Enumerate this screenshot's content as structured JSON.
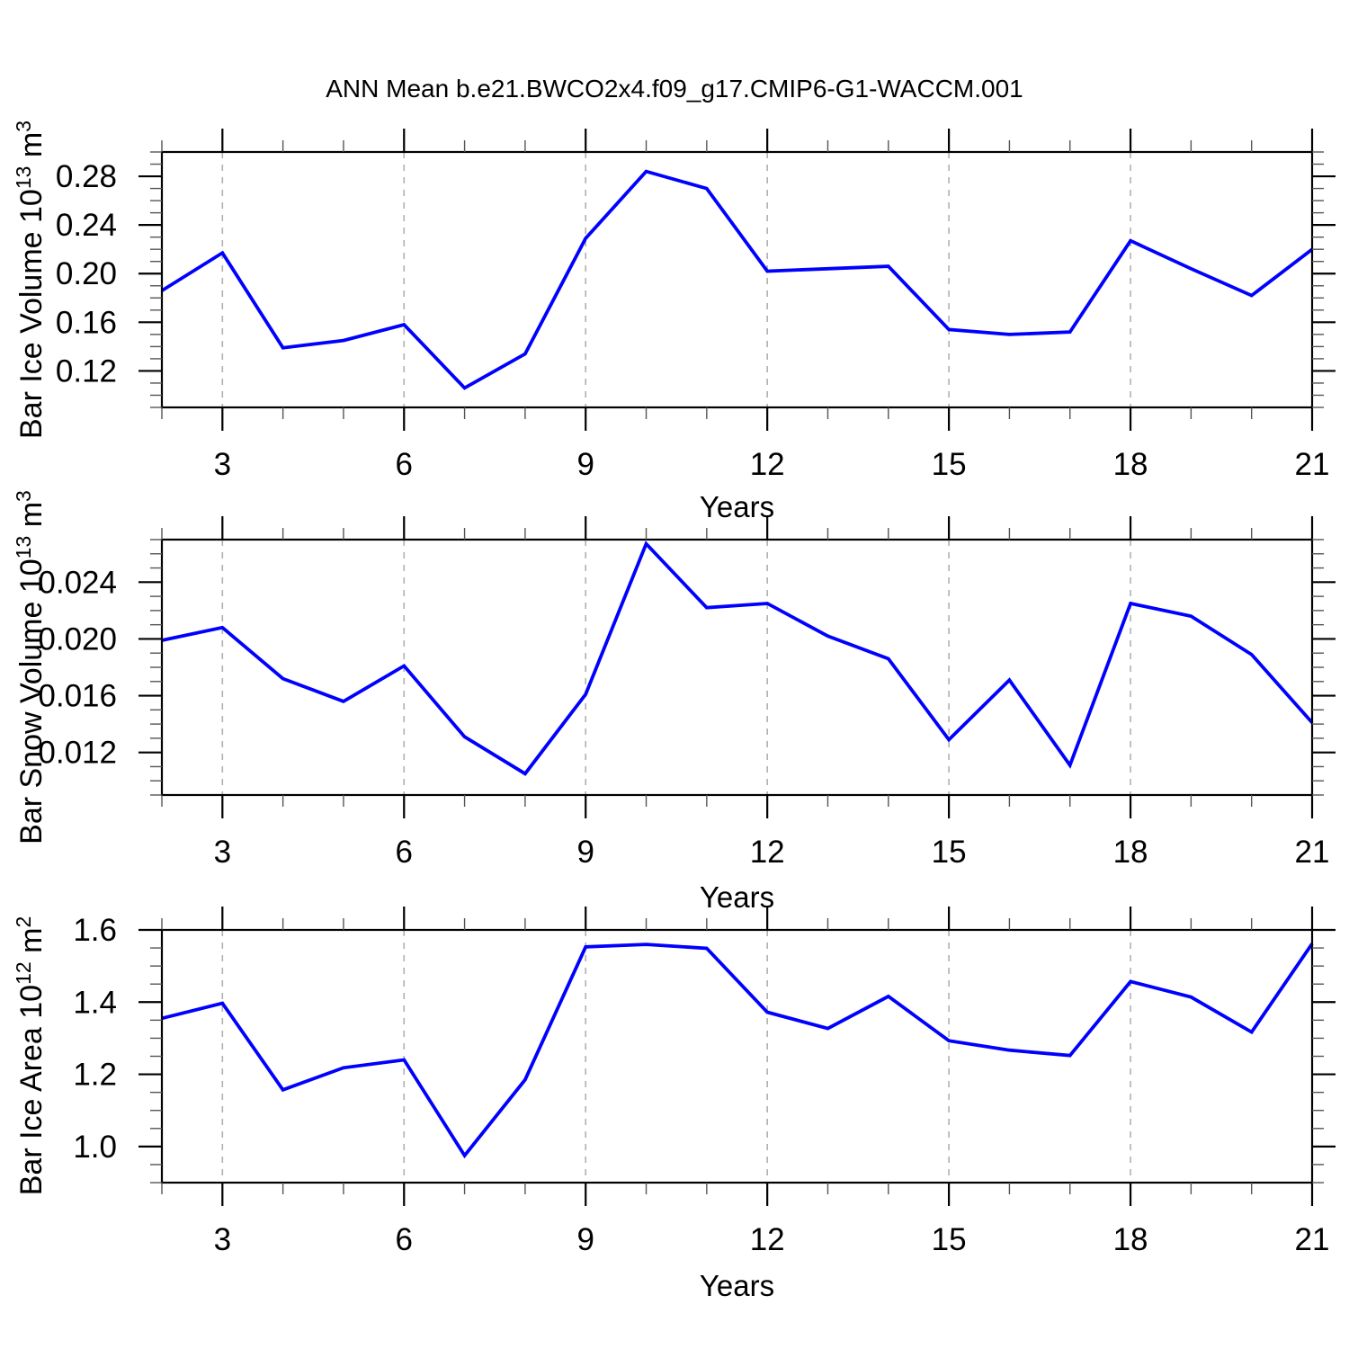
{
  "title": "ANN Mean b.e21.BWCO2x4.f09_g17.CMIP6-G1-WACCM.001",
  "style": {
    "background": "#ffffff",
    "axis_color": "#000000",
    "minor_tick_color": "#555555",
    "grid_color": "#b0b0b0",
    "line_color": "#0000ff"
  },
  "chart_data": [
    {
      "name": "bar-ice-volume",
      "type": "line",
      "x": [
        2,
        3,
        4,
        5,
        6,
        7,
        8,
        9,
        10,
        11,
        12,
        13,
        14,
        15,
        16,
        17,
        18,
        19,
        20,
        21
      ],
      "values": [
        0.186,
        0.217,
        0.139,
        0.145,
        0.158,
        0.106,
        0.134,
        0.229,
        0.284,
        0.27,
        0.202,
        0.204,
        0.206,
        0.154,
        0.15,
        0.152,
        0.227,
        0.204,
        0.182,
        0.22
      ],
      "xlabel": "Years",
      "ylabel": {
        "base": "Bar Ice Volume 10",
        "exp": "13",
        "unit": " m",
        "unit_exp": "3"
      },
      "xlim": [
        2,
        21
      ],
      "ylim": [
        0.09,
        0.3
      ],
      "xticks": [
        3,
        6,
        9,
        12,
        15,
        18,
        21
      ],
      "xtick_labels": [
        "3",
        "6",
        "9",
        "12",
        "15",
        "18",
        "21"
      ],
      "x_minor_step": 1,
      "yticks": [
        0.12,
        0.16,
        0.2,
        0.24,
        0.28
      ],
      "ytick_labels": [
        "0.12",
        "0.16",
        "0.20",
        "0.24",
        "0.28"
      ],
      "y_minor_step": 0.01,
      "grid_x": [
        3,
        6,
        9,
        12,
        15,
        18
      ],
      "grid_on": true,
      "legend": "none",
      "line_color": "#0000ff"
    },
    {
      "name": "bar-snow-volume",
      "type": "line",
      "x": [
        2,
        3,
        4,
        5,
        6,
        7,
        8,
        9,
        10,
        11,
        12,
        13,
        14,
        15,
        16,
        17,
        18,
        19,
        20,
        21
      ],
      "values": [
        0.0199,
        0.0208,
        0.0172,
        0.0156,
        0.0181,
        0.0131,
        0.0105,
        0.0161,
        0.0267,
        0.0222,
        0.0225,
        0.0202,
        0.0186,
        0.0129,
        0.0171,
        0.0111,
        0.0225,
        0.0216,
        0.0189,
        0.0141
      ],
      "xlabel": "Years",
      "ylabel": {
        "base": "Bar Snow Volume 10",
        "exp": "13",
        "unit": " m",
        "unit_exp": "3"
      },
      "xlim": [
        2,
        21
      ],
      "ylim": [
        0.009,
        0.027
      ],
      "xticks": [
        3,
        6,
        9,
        12,
        15,
        18,
        21
      ],
      "xtick_labels": [
        "3",
        "6",
        "9",
        "12",
        "15",
        "18",
        "21"
      ],
      "x_minor_step": 1,
      "yticks": [
        0.012,
        0.016,
        0.02,
        0.024
      ],
      "ytick_labels": [
        "0.012",
        "0.016",
        "0.020",
        "0.024"
      ],
      "y_minor_step": 0.001,
      "grid_x": [
        3,
        6,
        9,
        12,
        15,
        18
      ],
      "grid_on": true,
      "legend": "none",
      "line_color": "#0000ff"
    },
    {
      "name": "bar-ice-area",
      "type": "line",
      "x": [
        2,
        3,
        4,
        5,
        6,
        7,
        8,
        9,
        10,
        11,
        12,
        13,
        14,
        15,
        16,
        17,
        18,
        19,
        20,
        21
      ],
      "values": [
        1.355,
        1.397,
        1.157,
        1.218,
        1.24,
        0.975,
        1.185,
        1.553,
        1.56,
        1.549,
        1.372,
        1.327,
        1.416,
        1.293,
        1.267,
        1.252,
        1.457,
        1.414,
        1.317,
        1.562
      ],
      "xlabel": "Years",
      "ylabel": {
        "base": "Bar Ice Area 10",
        "exp": "12",
        "unit": " m",
        "unit_exp": "2"
      },
      "xlim": [
        2,
        21
      ],
      "ylim": [
        0.9,
        1.6
      ],
      "xticks": [
        3,
        6,
        9,
        12,
        15,
        18,
        21
      ],
      "xtick_labels": [
        "3",
        "6",
        "9",
        "12",
        "15",
        "18",
        "21"
      ],
      "x_minor_step": 1,
      "yticks": [
        1.0,
        1.2,
        1.4,
        1.6
      ],
      "ytick_labels": [
        "1.0",
        "1.2",
        "1.4",
        "1.6"
      ],
      "y_minor_step": 0.05,
      "grid_x": [
        3,
        6,
        9,
        12,
        15,
        18
      ],
      "grid_on": true,
      "legend": "none",
      "line_color": "#0000ff"
    }
  ]
}
